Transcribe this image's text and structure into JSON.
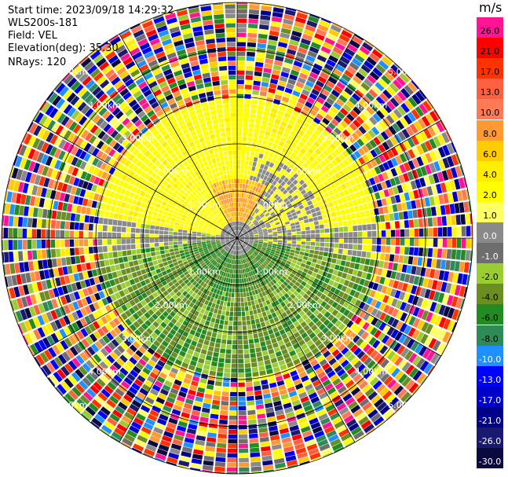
{
  "info": {
    "start_time": "Start time: 2023/09/18 14:29:32",
    "instrument": "WLS200s-181",
    "field": "Field: VEL",
    "elevation": "Elevation(deg): 35.30",
    "nrays": "NRays: 120"
  },
  "range_labels": [
    "1.00km",
    "2.00km",
    "3.00km",
    "4.00km",
    "5.00km"
  ],
  "colorbar": {
    "unit": "m/s",
    "levels": [
      {
        "label": "26.0",
        "color": "#ff1493"
      },
      {
        "label": "21.0",
        "color": "#ff0000"
      },
      {
        "label": "17.0",
        "color": "#ff3300"
      },
      {
        "label": "13.0",
        "color": "#ff6040"
      },
      {
        "label": "10.0",
        "color": "#ff7a55"
      },
      {
        "label": "8.0",
        "color": "#ff9a33"
      },
      {
        "label": "6.0",
        "color": "#ffcc00"
      },
      {
        "label": "4.0",
        "color": "#ffee00"
      },
      {
        "label": "2.0",
        "color": "#ffff00"
      },
      {
        "label": "1.0",
        "color": "#ffff66"
      },
      {
        "label": "0.0",
        "color": "#8a8a8a"
      },
      {
        "label": "-1.0",
        "color": "#6e6e6e"
      },
      {
        "label": "-2.0",
        "color": "#9acd32"
      },
      {
        "label": "-4.0",
        "color": "#6b8e23"
      },
      {
        "label": "-6.0",
        "color": "#228b22"
      },
      {
        "label": "-8.0",
        "color": "#2e8b57"
      },
      {
        "label": "-10.0",
        "color": "#1e90ff"
      },
      {
        "label": "-13.0",
        "color": "#0000ff"
      },
      {
        "label": "-17.0",
        "color": "#0000cd"
      },
      {
        "label": "-21.0",
        "color": "#00008b"
      },
      {
        "label": "-26.0",
        "color": "#191970"
      },
      {
        "label": "-30.0",
        "color": "#0a0a40"
      }
    ]
  }
}
